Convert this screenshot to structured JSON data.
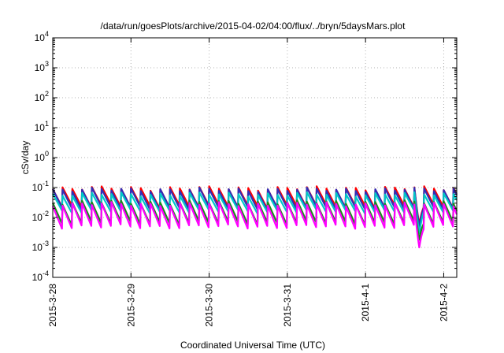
{
  "chart_data": {
    "type": "line",
    "title": "/data/run/goesPlots/archive/2015-04-02/04:00/flux/../bryn/5daysMars.plot",
    "xlabel": "Coordinated Universal Time (UTC)",
    "ylabel": "cSv/day",
    "y_scale": "log",
    "ylim": [
      0.0001,
      10000
    ],
    "y_ticks": [
      {
        "base": "10",
        "exp": "-4"
      },
      {
        "base": "10",
        "exp": "-3"
      },
      {
        "base": "10",
        "exp": "-2"
      },
      {
        "base": "10",
        "exp": "-1"
      },
      {
        "base": "10",
        "exp": "0"
      },
      {
        "base": "10",
        "exp": "1"
      },
      {
        "base": "10",
        "exp": "2"
      },
      {
        "base": "10",
        "exp": "3"
      },
      {
        "base": "10",
        "exp": "4"
      }
    ],
    "xlim": [
      "2015-03-28T00:00",
      "2015-04-02T04:00"
    ],
    "x_ticks": [
      "2015-3-28",
      "2015-3-29",
      "2015-3-30",
      "2015-3-31",
      "2015-4-1",
      "2015-4-2"
    ],
    "grid": true,
    "legend": "none",
    "series": [
      {
        "color": "#ff0000",
        "peak": 0.095,
        "trough": 0.022,
        "dip": 0.006
      },
      {
        "color": "#2f2fb8",
        "peak": 0.085,
        "trough": 0.019,
        "dip": 0.005
      },
      {
        "color": "#00c8c8",
        "peak": 0.06,
        "trough": 0.015,
        "dip": 0.003
      },
      {
        "color": "#1a8a1a",
        "peak": 0.032,
        "trough": 0.006,
        "dip": 0.0018
      },
      {
        "color": "#ff00ff",
        "peak": 0.028,
        "trough": 0.0045,
        "dip": 0.001
      }
    ],
    "cycle_hours": 3,
    "dip_time": "2015-04-01T16:30"
  }
}
